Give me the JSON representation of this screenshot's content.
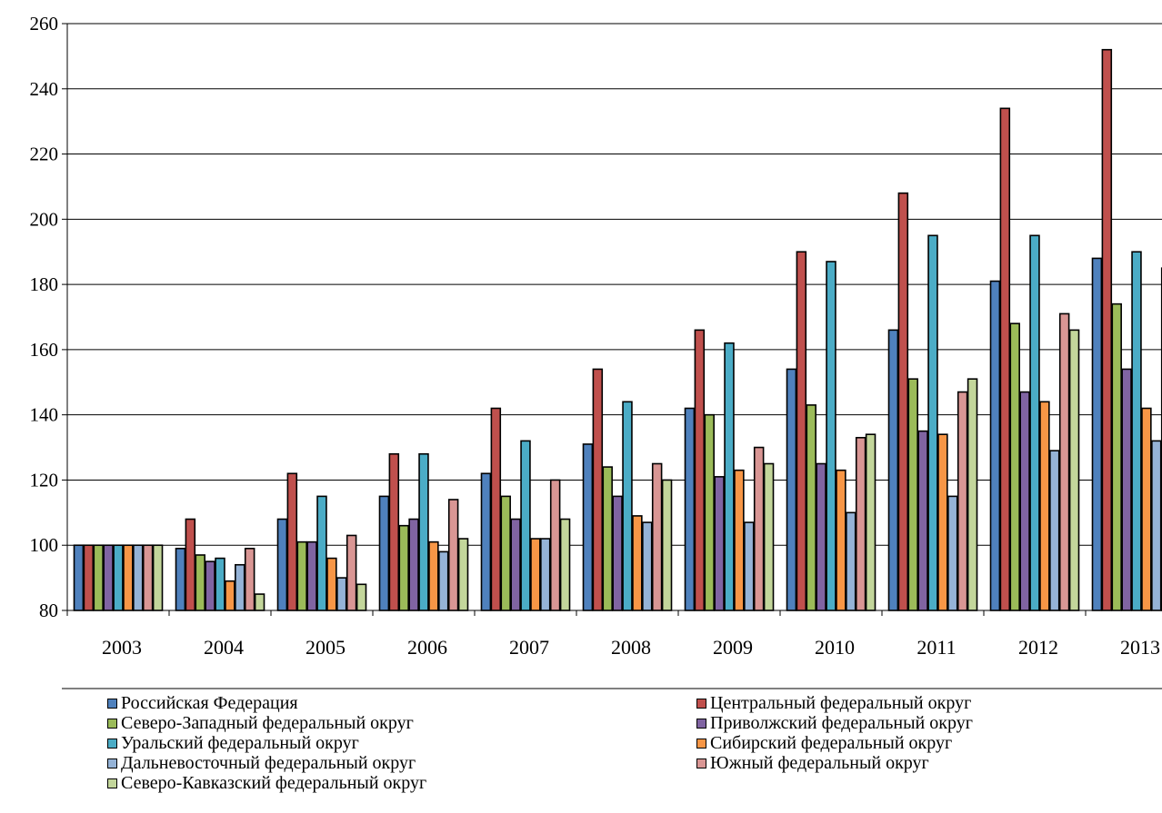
{
  "chart_data": {
    "type": "bar",
    "categories": [
      "2003",
      "2004",
      "2005",
      "2006",
      "2007",
      "2008",
      "2009",
      "2010",
      "2011",
      "2012",
      "2013"
    ],
    "ylim": [
      80,
      260
    ],
    "yticks": [
      80,
      100,
      120,
      140,
      160,
      180,
      200,
      220,
      240,
      260
    ],
    "grid": true,
    "legend_position": "bottom",
    "series": [
      {
        "name": "Российская Федерация",
        "color": "#4F81BD",
        "values": [
          100,
          99,
          108,
          115,
          122,
          131,
          142,
          154,
          166,
          181,
          188
        ]
      },
      {
        "name": "Центральный федеральный округ",
        "color": "#C0504D",
        "values": [
          100,
          108,
          122,
          128,
          142,
          154,
          166,
          190,
          208,
          234,
          252
        ]
      },
      {
        "name": "Северо-Западный федеральный округ",
        "color": "#9BBB59",
        "values": [
          100,
          97,
          101,
          106,
          115,
          124,
          140,
          143,
          151,
          168,
          174
        ]
      },
      {
        "name": "Приволжский федеральный округ",
        "color": "#8064A2",
        "values": [
          100,
          95,
          101,
          108,
          108,
          115,
          121,
          125,
          135,
          147,
          154
        ]
      },
      {
        "name": "Уральский федеральный округ",
        "color": "#4BACC6",
        "values": [
          100,
          96,
          115,
          128,
          132,
          144,
          162,
          187,
          195,
          195,
          190
        ]
      },
      {
        "name": "Сибирский федеральный округ",
        "color": "#F79646",
        "values": [
          100,
          89,
          96,
          101,
          102,
          109,
          123,
          123,
          134,
          144,
          142
        ]
      },
      {
        "name": "Дальневосточный федеральный округ",
        "color": "#95B3D7",
        "values": [
          100,
          94,
          90,
          98,
          102,
          107,
          107,
          110,
          115,
          129,
          132
        ]
      },
      {
        "name": "Южный федеральный округ",
        "color": "#D99694",
        "values": [
          100,
          99,
          103,
          114,
          120,
          125,
          130,
          133,
          147,
          171,
          185
        ]
      },
      {
        "name": "Северо-Кавказский федеральный округ",
        "color": "#C3D69B",
        "values": [
          100,
          85,
          88,
          102,
          108,
          120,
          125,
          134,
          151,
          166,
          null
        ]
      }
    ]
  }
}
